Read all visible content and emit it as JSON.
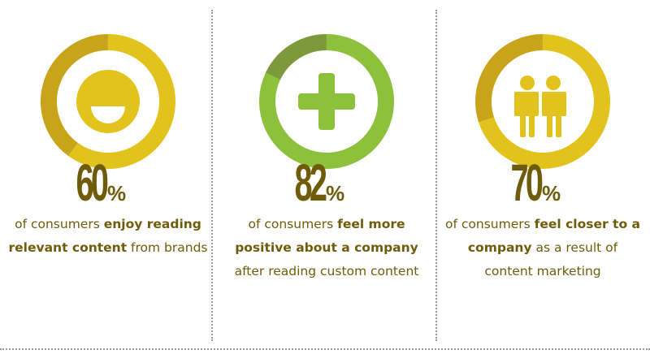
{
  "colors": {
    "yellow": "#e2c31e",
    "yellow_dark": "#c9a41a",
    "green": "#8dc13c",
    "green_dark": "#7d9a3a",
    "text": "#6e5c0a"
  },
  "stats": [
    {
      "value": 60,
      "number": "60",
      "percent_sign": "%",
      "icon": "smiley-icon",
      "color": "#e2c31e",
      "dark": "#c9a41a",
      "parts": [
        [
          "of consumers ",
          false
        ],
        [
          "enjoy reading relevant content",
          true
        ],
        [
          " from brands",
          false
        ]
      ]
    },
    {
      "value": 82,
      "number": "82",
      "percent_sign": "%",
      "icon": "plus-icon",
      "color": "#8dc13c",
      "dark": "#7d9a3a",
      "parts": [
        [
          "of consumers ",
          false
        ],
        [
          "feel more positive about a company",
          true
        ],
        [
          " after reading custom content",
          false
        ]
      ]
    },
    {
      "value": 70,
      "number": "70",
      "percent_sign": "%",
      "icon": "two-people-icon",
      "color": "#e2c31e",
      "dark": "#c9a41a",
      "parts": [
        [
          "of consumers ",
          false
        ],
        [
          "feel closer to a company",
          true
        ],
        [
          " as a result of content marketing",
          false
        ]
      ]
    }
  ]
}
